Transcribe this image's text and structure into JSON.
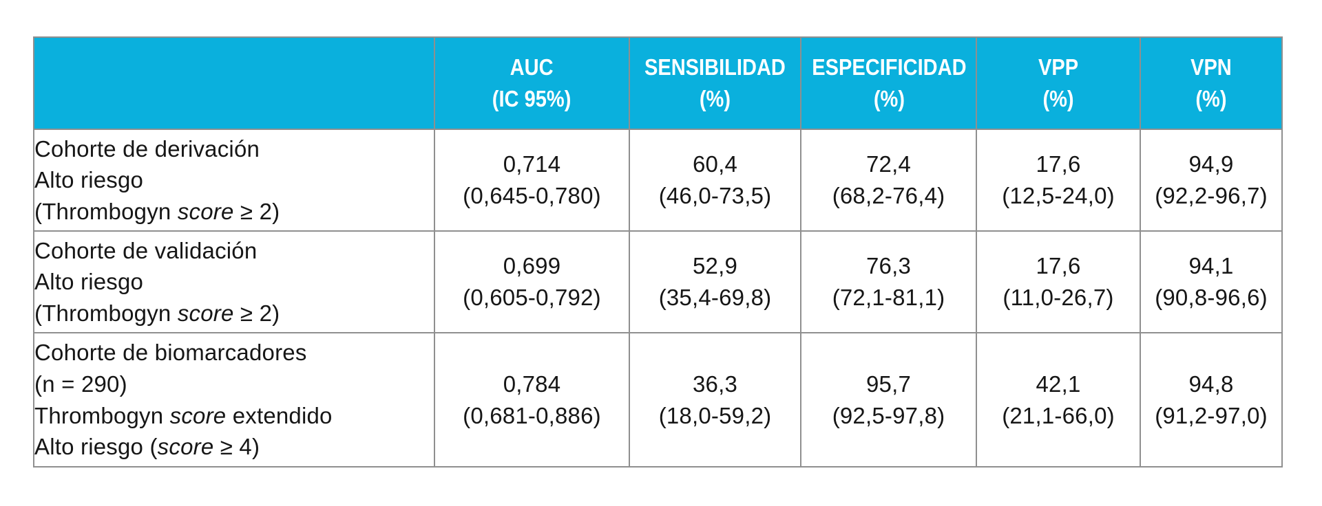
{
  "colors": {
    "header_bg": "#0ab0dd",
    "header_text": "#ffffff",
    "border": "#8f8f8f",
    "body_text": "#161616",
    "page_bg": "#ffffff"
  },
  "table": {
    "headers": [
      {
        "line1": "",
        "line2": ""
      },
      {
        "line1": "AUC",
        "line2": "(IC 95%)"
      },
      {
        "line1": "SENSIBILIDAD",
        "line2": "(%)"
      },
      {
        "line1": "ESPECIFICIDAD",
        "line2": "(%)"
      },
      {
        "line1": "VPP",
        "line2": "(%)"
      },
      {
        "line1": "VPN",
        "line2": "(%)"
      }
    ],
    "rows": [
      {
        "label": [
          [
            {
              "t": "Cohorte de derivación"
            }
          ],
          [
            {
              "t": "Alto riesgo"
            }
          ],
          [
            {
              "t": "(Thrombogyn "
            },
            {
              "t": "score",
              "italic": true
            },
            {
              "t": " ≥ 2)"
            }
          ]
        ],
        "auc": {
          "v": "0,714",
          "ci": "(0,645-0,780)"
        },
        "sensibilidad": {
          "v": "60,4",
          "ci": "(46,0-73,5)"
        },
        "especificidad": {
          "v": "72,4",
          "ci": "(68,2-76,4)"
        },
        "vpp": {
          "v": "17,6",
          "ci": "(12,5-24,0)"
        },
        "vpn": {
          "v": "94,9",
          "ci": "(92,2-96,7)"
        }
      },
      {
        "label": [
          [
            {
              "t": "Cohorte de validación"
            }
          ],
          [
            {
              "t": "Alto riesgo"
            }
          ],
          [
            {
              "t": "(Thrombogyn "
            },
            {
              "t": "score",
              "italic": true
            },
            {
              "t": " ≥ 2)"
            }
          ]
        ],
        "auc": {
          "v": "0,699",
          "ci": "(0,605-0,792)"
        },
        "sensibilidad": {
          "v": "52,9",
          "ci": "(35,4-69,8)"
        },
        "especificidad": {
          "v": "76,3",
          "ci": "(72,1-81,1)"
        },
        "vpp": {
          "v": "17,6",
          "ci": "(11,0-26,7)"
        },
        "vpn": {
          "v": "94,1",
          "ci": "(90,8-96,6)"
        }
      },
      {
        "label": [
          [
            {
              "t": "Cohorte de biomarcadores"
            }
          ],
          [
            {
              "t": "(n = 290)"
            }
          ],
          [
            {
              "t": "Thrombogyn "
            },
            {
              "t": "score",
              "italic": true
            },
            {
              "t": " extendido"
            }
          ],
          [
            {
              "t": "Alto riesgo ("
            },
            {
              "t": "score",
              "italic": true
            },
            {
              "t": " ≥ 4)"
            }
          ]
        ],
        "auc": {
          "v": "0,784",
          "ci": "(0,681-0,886)"
        },
        "sensibilidad": {
          "v": "36,3",
          "ci": "(18,0-59,2)"
        },
        "especificidad": {
          "v": "95,7",
          "ci": "(92,5-97,8)"
        },
        "vpp": {
          "v": "42,1",
          "ci": "(21,1-66,0)"
        },
        "vpn": {
          "v": "94,8",
          "ci": "(91,2-97,0)"
        }
      }
    ]
  }
}
